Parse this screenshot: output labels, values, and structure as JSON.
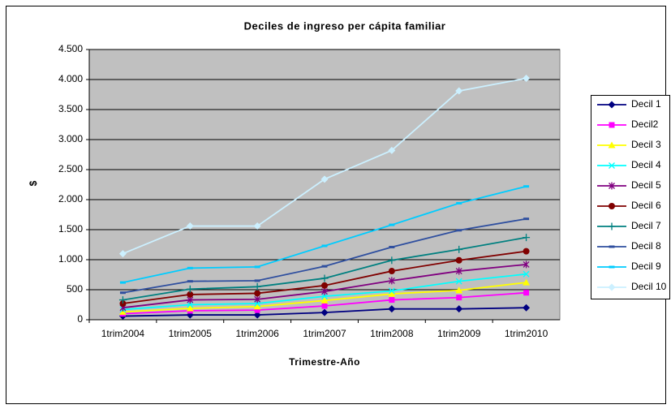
{
  "chart_data": {
    "type": "line",
    "title": "Deciles de ingreso per cápita familiar",
    "x_label": "Trimestre-Año",
    "y_label": "$",
    "categories": [
      "1trim2004",
      "1trim2005",
      "1trim2006",
      "1trim2007",
      "1trim2008",
      "1trim2009",
      "1trim2010"
    ],
    "ylim": [
      0,
      4500
    ],
    "yticks": [
      0,
      500,
      {
        "value": 1000,
        "label": "1.000"
      },
      {
        "value": 1500,
        "label": "1.500"
      },
      {
        "value": 2000,
        "label": "2.000"
      },
      {
        "value": 2500,
        "label": "2.500"
      },
      {
        "value": 3000,
        "label": "3.000"
      },
      {
        "value": 3500,
        "label": "3.500"
      },
      {
        "value": 4000,
        "label": "4.000"
      },
      {
        "value": 4500,
        "label": "4.500"
      }
    ],
    "grid": true,
    "legend": "right",
    "series": [
      {
        "name": "Decil 1",
        "color": "#000080",
        "marker": "diamond",
        "values": [
          60,
          80,
          80,
          120,
          180,
          180,
          200
        ]
      },
      {
        "name": "Decil2",
        "color": "#ff00ff",
        "marker": "square",
        "values": [
          100,
          150,
          160,
          230,
          330,
          370,
          450
        ]
      },
      {
        "name": "Decil 3",
        "color": "#ffff00",
        "marker": "triangle",
        "values": [
          130,
          190,
          220,
          320,
          430,
          490,
          620
        ]
      },
      {
        "name": "Decil 4",
        "color": "#00ffff",
        "marker": "x",
        "values": [
          170,
          250,
          270,
          390,
          480,
          640,
          760
        ]
      },
      {
        "name": "Decil 5",
        "color": "#800080",
        "marker": "star",
        "values": [
          200,
          330,
          340,
          470,
          650,
          810,
          920
        ]
      },
      {
        "name": "Decil 6",
        "color": "#800000",
        "marker": "circle",
        "values": [
          270,
          420,
          440,
          570,
          810,
          990,
          1140
        ]
      },
      {
        "name": "Decil 7",
        "color": "#008080",
        "marker": "plus",
        "values": [
          330,
          510,
          550,
          690,
          990,
          1170,
          1370
        ]
      },
      {
        "name": "Decil 8",
        "color": "#2f4f9f",
        "marker": "dash",
        "values": [
          450,
          640,
          650,
          890,
          1210,
          1490,
          1680
        ]
      },
      {
        "name": "Decil 9",
        "color": "#00ccff",
        "marker": "dash",
        "values": [
          620,
          860,
          880,
          1230,
          1580,
          1940,
          2220
        ]
      },
      {
        "name": "Decil 10",
        "color": "#ccf0ff",
        "marker": "diamond",
        "values": [
          1100,
          1560,
          1560,
          2340,
          2820,
          3810,
          4020
        ]
      }
    ]
  }
}
